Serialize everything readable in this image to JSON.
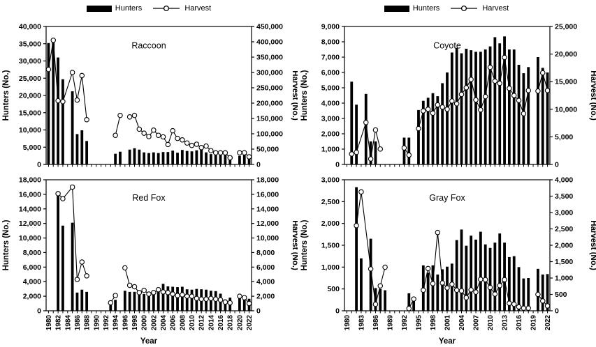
{
  "figure": {
    "background": "#ffffff",
    "ink_color": "#000000",
    "marker_fill": "#ffffff",
    "legend": {
      "hunters_label": "Hunters",
      "harvest_label": "Harvest",
      "position": "top"
    },
    "x_axis_title": "Year",
    "grid": "off"
  },
  "chart_data": [
    {
      "id": "raccoon",
      "type": "bar",
      "subtype": "bar+line dual-axis combo",
      "title": "Raccoon",
      "position": "top-left",
      "x_range": [
        1980,
        2022
      ],
      "left_axis": {
        "label": "Hunters (No.)",
        "min": 0,
        "max": 40000,
        "step": 5000
      },
      "right_axis": {
        "label": "Harvest (No.)",
        "min": 0,
        "max": 450000,
        "step": 50000
      },
      "show_x_labels": false,
      "x_tick_labels": [],
      "series": [
        {
          "name": "Hunters",
          "type": "bar",
          "axis": "left",
          "values": {
            "1980": 35200,
            "1981": 36000,
            "1982": 31000,
            "1983": 24700,
            "1985": 21200,
            "1986": 8800,
            "1987": 9900,
            "1988": 6800,
            "1994": 3100,
            "1995": 3700,
            "1997": 4300,
            "1998": 4700,
            "1999": 4300,
            "2000": 3500,
            "2001": 3300,
            "2002": 3500,
            "2003": 3300,
            "2004": 3600,
            "2005": 3600,
            "2006": 4000,
            "2007": 3400,
            "2008": 4200,
            "2009": 3900,
            "2010": 3800,
            "2011": 4100,
            "2012": 4400,
            "2013": 3500,
            "2014": 3000,
            "2015": 3000,
            "2016": 3100,
            "2017": 2900,
            "2018": 1700,
            "2020": 2500,
            "2021": 2900,
            "2022": 2300
          }
        },
        {
          "name": "Harvest",
          "type": "line",
          "axis": "right",
          "values": {
            "1980": 310000,
            "1981": 405000,
            "1982": 208000,
            "1983": 205000,
            "1985": 300000,
            "1986": 210000,
            "1987": 290000,
            "1988": 146000,
            "1994": 95000,
            "1995": 160000,
            "1997": 155000,
            "1998": 160000,
            "1999": 115000,
            "2000": 102000,
            "2001": 91000,
            "2002": 112000,
            "2003": 95000,
            "2004": 90000,
            "2005": 65000,
            "2006": 110000,
            "2007": 85000,
            "2008": 80000,
            "2009": 70000,
            "2010": 62000,
            "2011": 66000,
            "2012": 55000,
            "2013": 60000,
            "2014": 45000,
            "2015": 38000,
            "2016": 38000,
            "2017": 38000,
            "2018": 22000,
            "2020": 38000,
            "2021": 38000,
            "2022": 25000
          }
        }
      ]
    },
    {
      "id": "coyote",
      "type": "bar",
      "subtype": "bar+line dual-axis combo",
      "title": "Coyote",
      "position": "top-right",
      "x_range": [
        1980,
        2022
      ],
      "left_axis": {
        "label": "Hunters (No.)",
        "min": 0,
        "max": 9000,
        "step": 1000
      },
      "right_axis": {
        "label": "Harvest (No.)",
        "min": 0,
        "max": 25000,
        "step": 5000
      },
      "show_x_labels": false,
      "x_tick_labels": [],
      "series": [
        {
          "name": "Hunters",
          "type": "bar",
          "axis": "left",
          "values": {
            "1981": 5400,
            "1982": 3900,
            "1984": 4600,
            "1985": 1500,
            "1986": 1500,
            "1992": 1750,
            "1993": 1750,
            "1995": 3550,
            "1996": 4150,
            "1997": 4350,
            "1998": 4650,
            "1999": 4450,
            "2000": 5300,
            "2001": 6000,
            "2002": 7300,
            "2003": 7600,
            "2004": 7250,
            "2005": 7550,
            "2006": 7450,
            "2007": 7350,
            "2008": 7350,
            "2009": 7500,
            "2010": 7700,
            "2011": 8300,
            "2012": 7900,
            "2013": 8350,
            "2014": 7500,
            "2015": 7500,
            "2016": 6500,
            "2017": 5950,
            "2018": 6350,
            "2020": 7000,
            "2021": 6300,
            "2022": 6000
          }
        },
        {
          "name": "Harvest",
          "type": "line",
          "axis": "right",
          "values": {
            "1981": 1900,
            "1982": 2200,
            "1984": 7600,
            "1985": 1000,
            "1986": 6250,
            "1987": 2800,
            "1992": 3000,
            "1993": 1700,
            "1995": 6500,
            "1996": 9700,
            "1997": 10000,
            "1998": 9300,
            "1999": 10800,
            "2000": 10400,
            "2001": 10000,
            "2002": 11500,
            "2003": 11000,
            "2004": 12700,
            "2005": 13900,
            "2006": 15400,
            "2007": 11700,
            "2008": 9900,
            "2009": 12300,
            "2010": 17600,
            "2011": 15100,
            "2012": 14700,
            "2013": 19400,
            "2014": 13800,
            "2015": 12500,
            "2016": 11600,
            "2017": 9200,
            "2018": 13400,
            "2020": 13300,
            "2021": 16600,
            "2022": 13400
          }
        }
      ]
    },
    {
      "id": "redfox",
      "type": "bar",
      "subtype": "bar+line dual-axis combo",
      "title": "Red Fox",
      "position": "bottom-left",
      "x_range": [
        1980,
        2022
      ],
      "left_axis": {
        "label": "Hunters (No.)",
        "min": 0,
        "max": 18000,
        "step": 2000
      },
      "right_axis": {
        "label": "Harvest (No.)",
        "min": 0,
        "max": 18000,
        "step": 2000
      },
      "show_x_labels": true,
      "x_tick_labels": [
        1980,
        1982,
        1984,
        1986,
        1988,
        1990,
        1992,
        1994,
        1996,
        1998,
        2000,
        2002,
        2004,
        2006,
        2008,
        2010,
        2012,
        2014,
        2016,
        2018,
        2020,
        2022
      ],
      "series": [
        {
          "name": "Hunters",
          "type": "bar",
          "axis": "left",
          "values": {
            "1982": 16000,
            "1983": 11700,
            "1985": 12100,
            "1986": 2500,
            "1987": 2900,
            "1988": 2600,
            "1993": 1100,
            "1994": 1500,
            "1996": 2750,
            "1997": 2600,
            "1998": 2600,
            "1999": 2250,
            "2000": 2300,
            "2001": 2250,
            "2002": 2350,
            "2003": 3200,
            "2004": 3700,
            "2005": 3350,
            "2006": 3300,
            "2007": 3250,
            "2008": 3300,
            "2009": 2950,
            "2010": 2900,
            "2011": 3000,
            "2012": 2950,
            "2013": 2900,
            "2014": 2750,
            "2015": 2700,
            "2016": 2350,
            "2017": 1550,
            "2018": 1800,
            "2020": 2050,
            "2021": 1700,
            "2022": 1650
          }
        },
        {
          "name": "Harvest",
          "type": "line",
          "axis": "right",
          "values": {
            "1982": 16100,
            "1983": 15400,
            "1985": 17000,
            "1986": 4300,
            "1987": 6700,
            "1988": 4800,
            "1993": 1100,
            "1994": 2100,
            "1996": 5900,
            "1997": 3500,
            "1998": 3300,
            "1999": 2500,
            "2000": 2800,
            "2001": 2300,
            "2002": 2500,
            "2003": 2900,
            "2004": 2600,
            "2005": 2500,
            "2006": 2300,
            "2007": 2100,
            "2008": 2200,
            "2009": 2000,
            "2010": 2000,
            "2011": 1700,
            "2012": 1600,
            "2013": 1600,
            "2014": 1700,
            "2015": 1600,
            "2016": 1500,
            "2017": 1200,
            "2018": 1100,
            "2020": 2000,
            "2021": 1800,
            "2022": 1000
          }
        }
      ]
    },
    {
      "id": "grayfox",
      "type": "bar",
      "subtype": "bar+line dual-axis combo",
      "title": "Gray Fox",
      "position": "bottom-right",
      "x_range": [
        1980,
        2022
      ],
      "left_axis": {
        "label": "Hunters (No.)",
        "min": 0,
        "max": 3000,
        "step": 500
      },
      "right_axis": {
        "label": "Harvest (No.)",
        "min": 0,
        "max": 4000,
        "step": 500
      },
      "show_x_labels": true,
      "x_tick_labels": [
        1980,
        1983,
        1986,
        1989,
        1992,
        1995,
        1998,
        2001,
        2004,
        2007,
        2010,
        2013,
        2016,
        2019,
        2022
      ],
      "series": [
        {
          "name": "Hunters",
          "type": "bar",
          "axis": "left",
          "values": {
            "1982": 2830,
            "1983": 1200,
            "1985": 1650,
            "1986": 520,
            "1987": 500,
            "1988": 470,
            "1993": 400,
            "1994": 220,
            "1996": 1040,
            "1997": 870,
            "1998": 1040,
            "1999": 830,
            "2000": 950,
            "2001": 1010,
            "2002": 1080,
            "2003": 1620,
            "2004": 1860,
            "2005": 1490,
            "2006": 1720,
            "2007": 1630,
            "2008": 1810,
            "2009": 1520,
            "2010": 1440,
            "2011": 1560,
            "2012": 1770,
            "2013": 1560,
            "2014": 1230,
            "2015": 1250,
            "2016": 1000,
            "2017": 740,
            "2018": 750,
            "2020": 960,
            "2021": 830,
            "2022": 840
          }
        },
        {
          "name": "Harvest",
          "type": "line",
          "axis": "right",
          "values": {
            "1982": 2600,
            "1983": 3630,
            "1985": 1280,
            "1986": 200,
            "1987": 760,
            "1988": 1330,
            "1993": 70,
            "1994": 360,
            "1996": 630,
            "1997": 1290,
            "1998": 830,
            "1999": 2390,
            "2000": 850,
            "2001": 700,
            "2002": 810,
            "2003": 630,
            "2004": 610,
            "2005": 400,
            "2006": 640,
            "2007": 570,
            "2008": 960,
            "2009": 950,
            "2010": 710,
            "2011": 510,
            "2012": 770,
            "2013": 950,
            "2014": 230,
            "2015": 200,
            "2016": 120,
            "2017": 80,
            "2018": 80,
            "2020": 500,
            "2021": 300,
            "2022": 150
          }
        }
      ]
    }
  ]
}
